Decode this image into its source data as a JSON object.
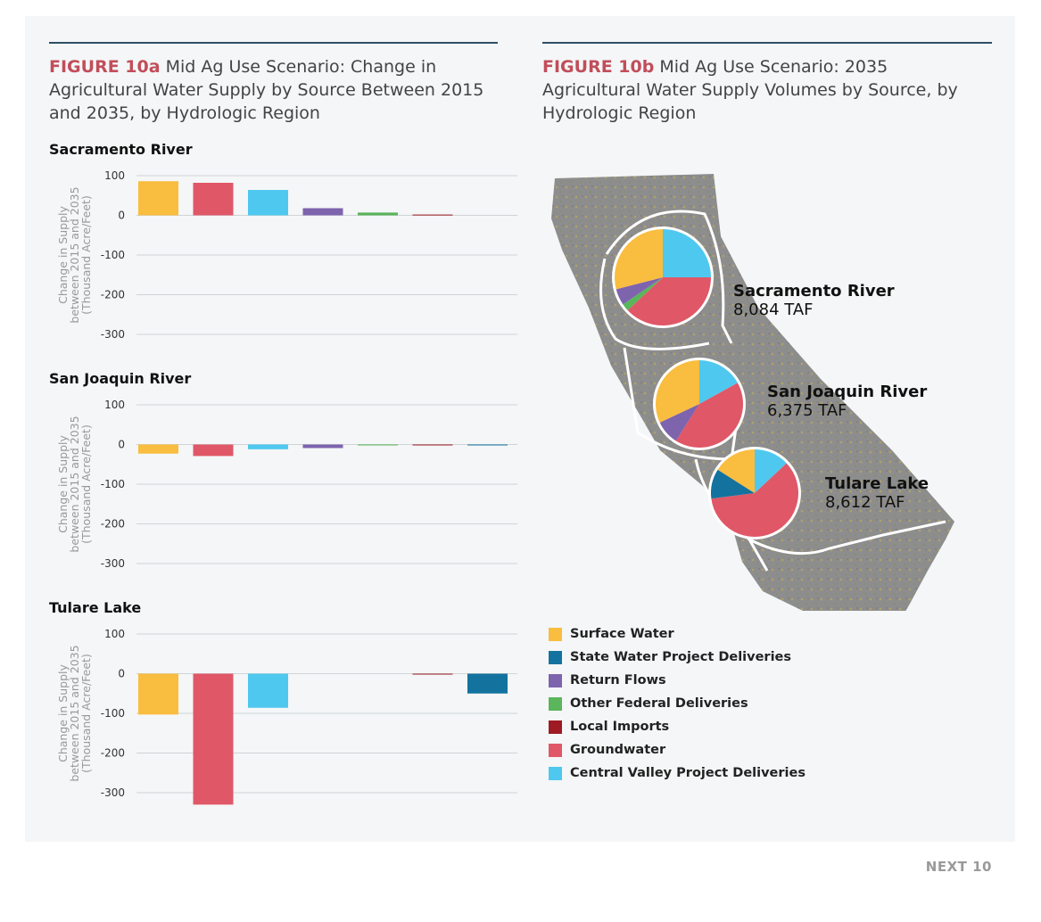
{
  "fig_a": {
    "label": "FIGURE 10a",
    "title_rest": " Mid Ag Use Scenario: Change in Agricultural Water Supply by Source Between 2015 and 2035, by Hydrologic Region"
  },
  "fig_b": {
    "label": "FIGURE 10b",
    "title_rest": " Mid Ag Use Scenario: 2035 Agricultural Water Supply Volumes by Source, by Hydrologic Region"
  },
  "ylabel_line1": "Change in Supply",
  "ylabel_line2": "between 2015 and 2035",
  "ylabel_line3": "(Thousand Acre/Feet)",
  "footer": "NEXT 10",
  "colors": {
    "Surface Water": "#f9bd3f",
    "Groundwater": "#e05767",
    "Central Valley Project Deliveries": "#4fc8ef",
    "Return Flows": "#7e63ad",
    "Other Federal Deliveries": "#5ab55b",
    "Local Imports": "#9e1b23",
    "State Water Project Deliveries": "#14739e"
  },
  "legend": [
    "Surface Water",
    "State Water Project Deliveries",
    "Return Flows",
    "Other Federal Deliveries",
    "Local Imports",
    "Groundwater",
    "Central Valley Project Deliveries"
  ],
  "chart_data": [
    {
      "type": "bar",
      "title": "Sacramento River",
      "categories": [
        "Surface Water",
        "Groundwater",
        "Central Valley Project Deliveries",
        "Return Flows",
        "Other Federal Deliveries",
        "Local Imports",
        "State Water Project Deliveries"
      ],
      "values": [
        86,
        82,
        64,
        18,
        7,
        2,
        0
      ],
      "ylim": [
        -300,
        100
      ],
      "yticks": [
        "100",
        "0",
        "-100",
        "-200",
        "-300"
      ],
      "ylabel": "Change in Supply between 2015 and 2035 (Thousand Acre/Feet)"
    },
    {
      "type": "bar",
      "title": "San Joaquin River",
      "categories": [
        "Surface Water",
        "Groundwater",
        "Central Valley Project Deliveries",
        "Return Flows",
        "Other Federal Deliveries",
        "Local Imports",
        "State Water Project Deliveries"
      ],
      "values": [
        -23,
        -29,
        -12,
        -9,
        -1,
        -1,
        -1
      ],
      "ylim": [
        -300,
        100
      ],
      "yticks": [
        "100",
        "0",
        "-100",
        "-200",
        "-300"
      ],
      "ylabel": "Change in Supply between 2015 and 2035 (Thousand Acre/Feet)"
    },
    {
      "type": "bar",
      "title": "Tulare Lake",
      "categories": [
        "Surface Water",
        "Groundwater",
        "Central Valley Project Deliveries",
        "Return Flows",
        "Other Federal Deliveries",
        "Local Imports",
        "State Water Project Deliveries"
      ],
      "values": [
        -103,
        -330,
        -86,
        0,
        0,
        -1,
        -50
      ],
      "ylim": [
        -300,
        100
      ],
      "yticks": [
        "100",
        "0",
        "-100",
        "-200",
        "-300"
      ],
      "ylabel": "Change in Supply between 2015 and 2035 (Thousand Acre/Feet)"
    },
    {
      "type": "pie",
      "title": "Sacramento River",
      "total": "8,084 TAF",
      "slices": [
        {
          "name": "Central Valley Project Deliveries",
          "value": 25
        },
        {
          "name": "Groundwater",
          "value": 38
        },
        {
          "name": "Other Federal Deliveries",
          "value": 2.5
        },
        {
          "name": "Return Flows",
          "value": 5.5
        },
        {
          "name": "Surface Water",
          "value": 29
        }
      ]
    },
    {
      "type": "pie",
      "title": "San Joaquin River",
      "total": "6,375 TAF",
      "slices": [
        {
          "name": "Central Valley Project Deliveries",
          "value": 17
        },
        {
          "name": "Groundwater",
          "value": 42
        },
        {
          "name": "Return Flows",
          "value": 9
        },
        {
          "name": "Surface Water",
          "value": 32
        }
      ]
    },
    {
      "type": "pie",
      "title": "Tulare Lake",
      "total": "8,612 TAF",
      "slices": [
        {
          "name": "Central Valley Project Deliveries",
          "value": 13
        },
        {
          "name": "Groundwater",
          "value": 60
        },
        {
          "name": "State Water Project Deliveries",
          "value": 11
        },
        {
          "name": "Surface Water",
          "value": 16
        }
      ]
    }
  ]
}
